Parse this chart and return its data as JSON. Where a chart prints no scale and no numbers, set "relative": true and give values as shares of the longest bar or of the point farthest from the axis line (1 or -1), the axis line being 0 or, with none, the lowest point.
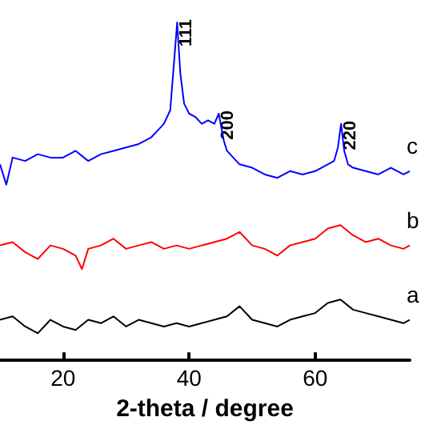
{
  "chart_data": {
    "type": "line",
    "relative": true,
    "xlabel": "2-theta / degree",
    "xlim": [
      10,
      75
    ],
    "xticks": [
      20,
      40,
      60
    ],
    "grid": false,
    "legend": false,
    "marker": "none",
    "line_style": "solid",
    "annotations": [
      {
        "text": "111",
        "x": 38.1,
        "y": 1.0
      },
      {
        "text": "200",
        "x": 44.7,
        "y": 0.73
      },
      {
        "text": "220",
        "x": 64.1,
        "y": 0.7
      }
    ],
    "series": [
      {
        "name": "a",
        "color": "#000000",
        "x": [
          10,
          12,
          14,
          16,
          18,
          20,
          22,
          24,
          26,
          28,
          30,
          32,
          34,
          36,
          38,
          40,
          42,
          44,
          46,
          48,
          50,
          52,
          54,
          56,
          58,
          60,
          62,
          64,
          66,
          68,
          70,
          72,
          74,
          75
        ],
        "values": [
          0.12,
          0.13,
          0.1,
          0.08,
          0.12,
          0.1,
          0.09,
          0.12,
          0.11,
          0.13,
          0.1,
          0.12,
          0.11,
          0.1,
          0.11,
          0.1,
          0.11,
          0.12,
          0.13,
          0.16,
          0.12,
          0.11,
          0.1,
          0.12,
          0.13,
          0.14,
          0.17,
          0.18,
          0.15,
          0.14,
          0.13,
          0.12,
          0.11,
          0.12
        ]
      },
      {
        "name": "b",
        "color": "#ff0000",
        "x": [
          10,
          12,
          14,
          16,
          18,
          20,
          22,
          23,
          24,
          26,
          28,
          30,
          32,
          34,
          36,
          38,
          40,
          42,
          44,
          46,
          48,
          50,
          52,
          54,
          56,
          58,
          60,
          62,
          64,
          66,
          68,
          70,
          72,
          74,
          75
        ],
        "values": [
          0.34,
          0.35,
          0.32,
          0.3,
          0.34,
          0.33,
          0.31,
          0.27,
          0.33,
          0.34,
          0.36,
          0.33,
          0.34,
          0.35,
          0.33,
          0.34,
          0.33,
          0.34,
          0.35,
          0.36,
          0.38,
          0.34,
          0.33,
          0.31,
          0.34,
          0.35,
          0.36,
          0.39,
          0.4,
          0.37,
          0.35,
          0.36,
          0.34,
          0.33,
          0.34
        ]
      },
      {
        "name": "c",
        "color": "#0000ff",
        "x": [
          10,
          11,
          12,
          14,
          16,
          18,
          20,
          22,
          24,
          26,
          28,
          30,
          32,
          34,
          35,
          36,
          37,
          37.6,
          38.1,
          38.6,
          39.2,
          40,
          41,
          42,
          43,
          44,
          44.7,
          45.5,
          46,
          47,
          48,
          50,
          52,
          54,
          56,
          58,
          60,
          62,
          63,
          63.6,
          64.1,
          64.6,
          65.2,
          66,
          68,
          70,
          72,
          74,
          75
        ],
        "values": [
          0.58,
          0.52,
          0.6,
          0.59,
          0.61,
          0.6,
          0.6,
          0.62,
          0.59,
          0.61,
          0.62,
          0.63,
          0.64,
          0.66,
          0.68,
          0.7,
          0.74,
          0.88,
          1.0,
          0.85,
          0.76,
          0.73,
          0.72,
          0.7,
          0.71,
          0.7,
          0.73,
          0.65,
          0.62,
          0.6,
          0.58,
          0.57,
          0.55,
          0.54,
          0.56,
          0.55,
          0.56,
          0.58,
          0.59,
          0.63,
          0.7,
          0.62,
          0.58,
          0.57,
          0.56,
          0.55,
          0.57,
          0.55,
          0.56
        ]
      }
    ]
  }
}
